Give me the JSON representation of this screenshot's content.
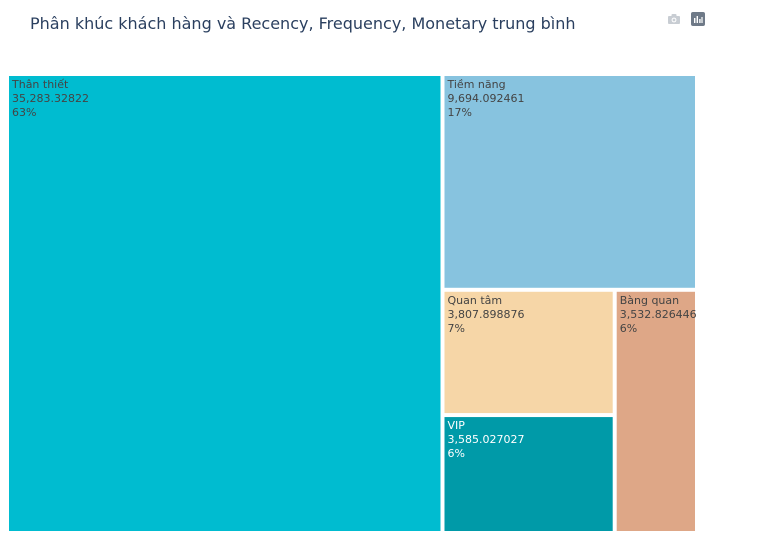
{
  "title": "Phân khúc khách hàng và Recency, Frequency, Monetary trung bình",
  "modebar": [
    {
      "name": "camera-icon",
      "icon": "camera"
    },
    {
      "name": "plotly-logo-icon",
      "icon": "plotly-logo"
    }
  ],
  "chart_data": {
    "type": "treemap",
    "items": [
      {
        "label": "Thân thiết",
        "value_text": "35,283.32822",
        "value": 35283.32822,
        "percent": "63%",
        "color": "#00bcd0",
        "text_color": "#444444"
      },
      {
        "label": "Tiềm năng",
        "value_text": "9,694.092461",
        "value": 9694.092461,
        "percent": "17%",
        "color": "#87c3df",
        "text_color": "#444444"
      },
      {
        "label": "Quan tâm",
        "value_text": "3,807.898876",
        "value": 3807.898876,
        "percent": "7%",
        "color": "#f6d6a7",
        "text_color": "#444444"
      },
      {
        "label": "Bàng quan",
        "value_text": "3,532.826446",
        "value": 3532.826446,
        "percent": "6%",
        "color": "#dea787",
        "text_color": "#444444"
      },
      {
        "label": "VIP",
        "value_text": "3,585.027027",
        "value": 3585.027027,
        "percent": "6%",
        "color": "#009aa8",
        "text_color": "#ffffff"
      }
    ]
  }
}
